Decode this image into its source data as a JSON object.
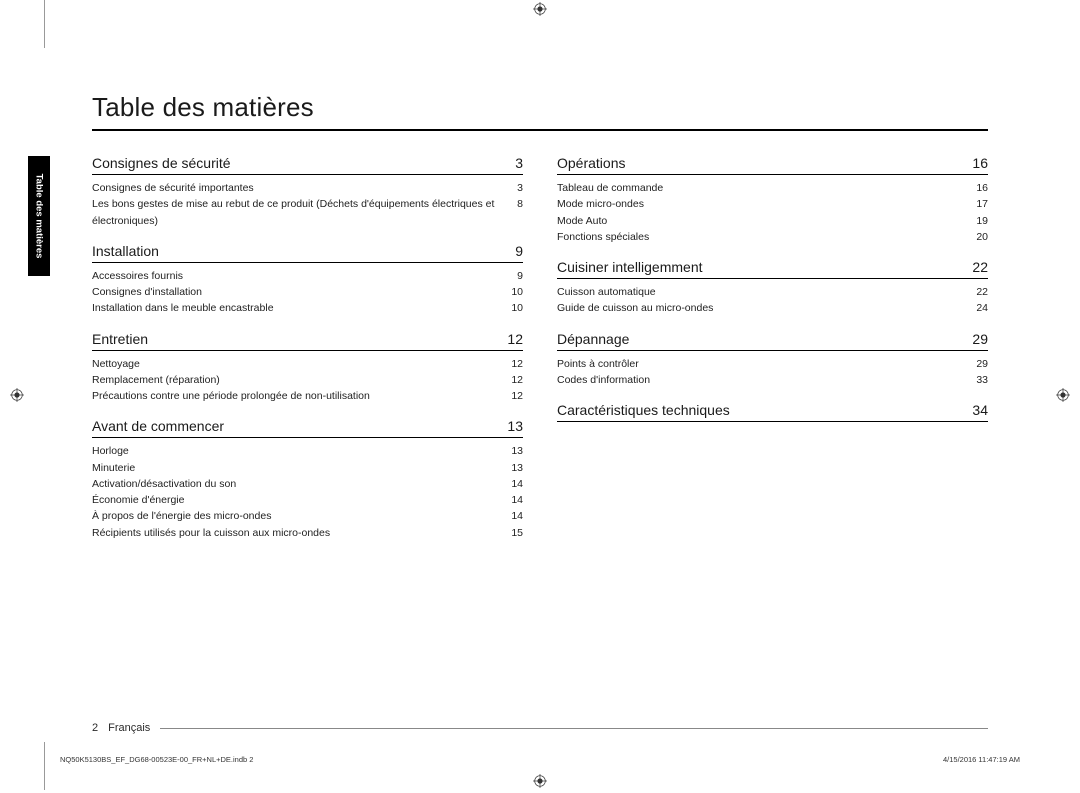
{
  "title": "Table des matières",
  "sideTab": "Table des matières",
  "footer": {
    "pageNum": "2",
    "lang": "Français"
  },
  "meta": {
    "file": "NQ50K5130BS_EF_DG68-00523E-00_FR+NL+DE.indb   2",
    "datetime": "4/15/2016   11:47:19 AM"
  },
  "left": [
    {
      "title": "Consignes de sécurité",
      "page": "3",
      "items": [
        {
          "label": "Consignes de sécurité importantes",
          "page": "3"
        },
        {
          "label": "Les bons gestes de mise au rebut de ce produit (Déchets d'équipements électriques et électroniques)",
          "page": "8"
        }
      ]
    },
    {
      "title": "Installation",
      "page": "9",
      "items": [
        {
          "label": "Accessoires fournis",
          "page": "9"
        },
        {
          "label": "Consignes d'installation",
          "page": "10"
        },
        {
          "label": "Installation dans le meuble encastrable",
          "page": "10"
        }
      ]
    },
    {
      "title": "Entretien",
      "page": "12",
      "items": [
        {
          "label": "Nettoyage",
          "page": "12"
        },
        {
          "label": "Remplacement (réparation)",
          "page": "12"
        },
        {
          "label": "Précautions contre une période prolongée de non-utilisation",
          "page": "12"
        }
      ]
    },
    {
      "title": "Avant de commencer",
      "page": "13",
      "items": [
        {
          "label": "Horloge",
          "page": "13"
        },
        {
          "label": "Minuterie",
          "page": "13"
        },
        {
          "label": "Activation/désactivation du son",
          "page": "14"
        },
        {
          "label": "Économie d'énergie",
          "page": "14"
        },
        {
          "label": "À propos de l'énergie des micro-ondes",
          "page": "14"
        },
        {
          "label": "Récipients utilisés pour la cuisson aux micro-ondes",
          "page": "15"
        }
      ]
    }
  ],
  "right": [
    {
      "title": "Opérations",
      "page": "16",
      "items": [
        {
          "label": "Tableau de commande",
          "page": "16"
        },
        {
          "label": "Mode micro-ondes",
          "page": "17"
        },
        {
          "label": "Mode Auto",
          "page": "19"
        },
        {
          "label": "Fonctions spéciales",
          "page": "20"
        }
      ]
    },
    {
      "title": "Cuisiner intelligemment",
      "page": "22",
      "items": [
        {
          "label": "Cuisson automatique",
          "page": "22"
        },
        {
          "label": "Guide de cuisson au micro-ondes",
          "page": "24"
        }
      ]
    },
    {
      "title": "Dépannage",
      "page": "29",
      "items": [
        {
          "label": "Points à contrôler",
          "page": "29"
        },
        {
          "label": "Codes d'information",
          "page": "33"
        }
      ]
    },
    {
      "title": "Caractéristiques techniques",
      "page": "34",
      "items": []
    }
  ]
}
